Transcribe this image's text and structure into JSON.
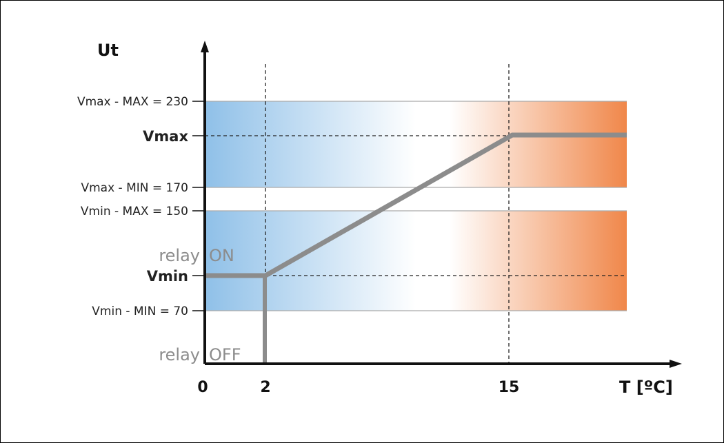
{
  "diagram": {
    "y_axis_title": "Ut",
    "x_axis_title": "T [ºC]",
    "x_ticks": [
      "0",
      "2",
      "15"
    ],
    "y_labels": {
      "vmax_max": "Vmax - MAX = 230",
      "vmax": "Vmax",
      "vmax_min": "Vmax - MIN = 170",
      "vmin_max": "Vmin - MAX = 150",
      "vmin": "Vmin",
      "vmin_min": "Vmin - MIN = 70"
    },
    "relay": {
      "on_word1": "relay",
      "on_word2": "ON",
      "off_word1": "relay",
      "off_word2": "OFF"
    },
    "colors": {
      "cold": "#8fc0e8",
      "hot": "#f0874a",
      "curve": "#8c8c8c",
      "axis": "#111111"
    }
  }
}
